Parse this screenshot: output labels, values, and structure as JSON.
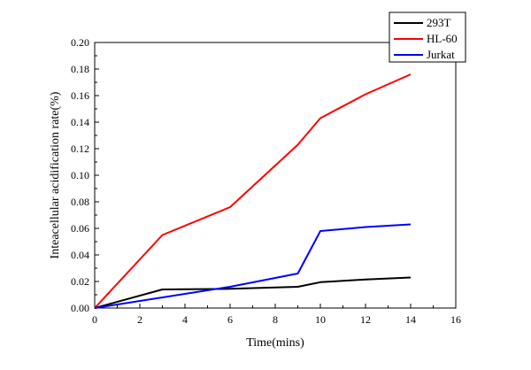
{
  "chart_data": {
    "type": "line",
    "title": "",
    "xlabel": "Time(mins)",
    "ylabel": "Inteacellular acidification rate(%)",
    "xlim": [
      0,
      16
    ],
    "ylim": [
      0,
      0.2
    ],
    "x_ticks": [
      "0",
      "2",
      "4",
      "6",
      "8",
      "10",
      "12",
      "14",
      "16"
    ],
    "y_ticks": [
      "0.00",
      "0.02",
      "0.04",
      "0.06",
      "0.08",
      "0.10",
      "0.12",
      "0.14",
      "0.16",
      "0.18",
      "0.20"
    ],
    "legend_position": "top-right",
    "series": [
      {
        "name": "293T",
        "color": "#000000",
        "x": [
          0,
          3,
          6,
          9,
          10,
          12,
          14
        ],
        "y": [
          0,
          0.014,
          0.0145,
          0.016,
          0.0195,
          0.0215,
          0.023
        ]
      },
      {
        "name": "HL-60",
        "color": "#ff0000",
        "x": [
          0,
          3,
          6,
          9,
          10,
          12,
          14
        ],
        "y": [
          0,
          0.055,
          0.076,
          0.123,
          0.143,
          0.161,
          0.176
        ]
      },
      {
        "name": "Jurkat",
        "color": "#0000ff",
        "x": [
          0,
          3,
          6,
          9,
          10,
          12,
          14
        ],
        "y": [
          0,
          0.008,
          0.016,
          0.026,
          0.058,
          0.061,
          0.063
        ]
      }
    ]
  }
}
